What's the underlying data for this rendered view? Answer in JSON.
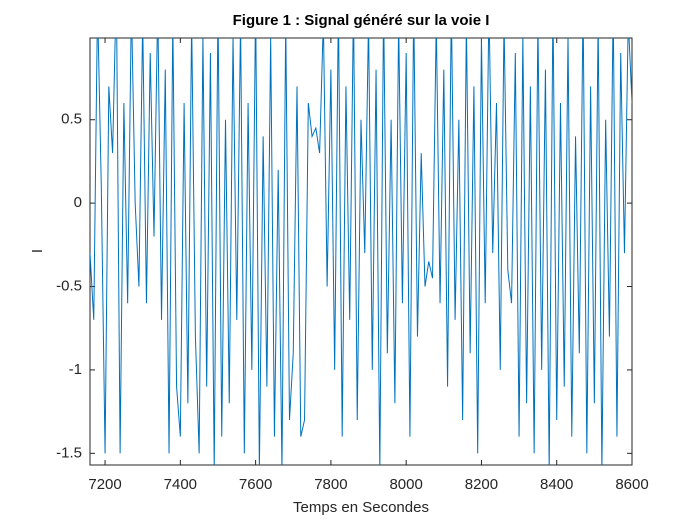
{
  "chart_data": {
    "type": "line",
    "title": "Figure 1 : Signal généré sur la voie I",
    "x_label": "Temps en Secondes",
    "y_label": "I",
    "xlim": [
      7160,
      8600
    ],
    "ylim": [
      -1.57,
      0.99
    ],
    "xticks": [
      7200,
      7400,
      7600,
      7800,
      8000,
      8200,
      8400,
      8600
    ],
    "yticks": [
      -1.5,
      -1,
      -0.5,
      0,
      0.5
    ],
    "x": [
      7160,
      7170,
      7180,
      7190,
      7200,
      7210,
      7220,
      7230,
      7240,
      7250,
      7260,
      7270,
      7280,
      7290,
      7300,
      7310,
      7320,
      7330,
      7340,
      7350,
      7360,
      7370,
      7380,
      7390,
      7400,
      7410,
      7420,
      7430,
      7440,
      7450,
      7460,
      7470,
      7480,
      7490,
      7500,
      7510,
      7520,
      7530,
      7540,
      7550,
      7560,
      7570,
      7580,
      7590,
      7600,
      7610,
      7620,
      7630,
      7640,
      7650,
      7660,
      7670,
      7680,
      7690,
      7700,
      7710,
      7720,
      7730,
      7740,
      7750,
      7760,
      7770,
      7780,
      7790,
      7800,
      7810,
      7820,
      7830,
      7840,
      7850,
      7860,
      7870,
      7880,
      7890,
      7900,
      7910,
      7920,
      7930,
      7940,
      7950,
      7960,
      7970,
      7980,
      7990,
      8000,
      8010,
      8020,
      8030,
      8040,
      8050,
      8060,
      8070,
      8080,
      8090,
      8100,
      8110,
      8120,
      8130,
      8140,
      8150,
      8160,
      8170,
      8180,
      8190,
      8200,
      8210,
      8220,
      8230,
      8240,
      8250,
      8260,
      8270,
      8280,
      8290,
      8300,
      8310,
      8320,
      8330,
      8340,
      8350,
      8360,
      8370,
      8380,
      8390,
      8400,
      8410,
      8420,
      8430,
      8440,
      8450,
      8460,
      8470,
      8480,
      8490,
      8500,
      8510,
      8520,
      8530,
      8540,
      8550,
      8560,
      8570,
      8580,
      8590,
      8600
    ],
    "series": [
      {
        "color": "#0072bd",
        "values": [
          -0.3,
          -0.7,
          1.2,
          0.1,
          -1.5,
          0.7,
          0.3,
          1.3,
          -1.5,
          0.6,
          -0.6,
          1.2,
          0.0,
          -0.5,
          1.1,
          -0.6,
          0.9,
          -0.2,
          1.2,
          -0.7,
          0.8,
          -1.5,
          1.1,
          -1.1,
          -1.4,
          0.6,
          -1.2,
          1.1,
          -0.8,
          -1.5,
          1.0,
          -1.1,
          0.9,
          -1.6,
          1.2,
          -1.4,
          0.5,
          -1.2,
          1.0,
          -0.7,
          1.1,
          -1.5,
          0.6,
          -1.0,
          1.2,
          -1.6,
          0.4,
          -1.1,
          1.0,
          -1.4,
          0.2,
          -1.6,
          1.1,
          -1.3,
          -0.9,
          0.7,
          -1.4,
          -1.3,
          0.6,
          0.4,
          0.45,
          0.3,
          1.1,
          -0.5,
          0.8,
          -1.0,
          1.2,
          -1.4,
          0.7,
          -0.7,
          1.2,
          -1.3,
          0.5,
          -0.3,
          1.1,
          -1.0,
          0.8,
          -1.6,
          1.2,
          -0.9,
          0.5,
          -1.2,
          1.1,
          -0.6,
          0.9,
          -1.4,
          1.2,
          -0.8,
          0.3,
          -0.5,
          -0.35,
          -0.45,
          1.1,
          -0.6,
          0.8,
          -1.1,
          1.2,
          -0.7,
          0.5,
          -1.3,
          1.1,
          -0.9,
          0.7,
          -1.5,
          1.0,
          -0.6,
          1.2,
          -0.3,
          0.6,
          -1.0,
          1.1,
          -0.4,
          -0.6,
          0.9,
          -1.4,
          1.0,
          -1.2,
          0.7,
          -1.5,
          1.1,
          -1.0,
          0.8,
          -1.6,
          1.2,
          -1.3,
          0.6,
          -1.1,
          1.0,
          -1.4,
          0.4,
          -0.9,
          1.2,
          -1.5,
          0.7,
          -1.2,
          1.1,
          -1.6,
          0.5,
          -0.8,
          1.2,
          -1.4,
          0.9,
          -0.3,
          1.1,
          0.6
        ]
      }
    ]
  }
}
